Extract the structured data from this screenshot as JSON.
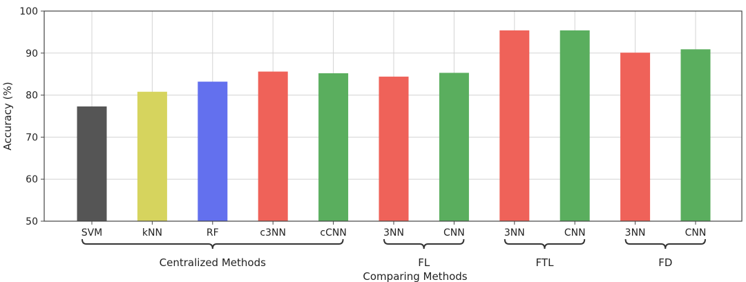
{
  "chart_data": {
    "type": "bar",
    "categories": [
      "SVM",
      "kNN",
      "RF",
      "c3NN",
      "cCNN",
      "3NN",
      "CNN",
      "3NN",
      "CNN",
      "3NN",
      "CNN"
    ],
    "values": [
      77.3,
      80.8,
      83.2,
      85.6,
      85.2,
      84.4,
      85.3,
      95.4,
      95.4,
      90.1,
      90.9
    ],
    "bar_colors": [
      "#555555",
      "#d6d45e",
      "#6370ee",
      "#ef6259",
      "#5aae5e",
      "#ef6259",
      "#5aae5e",
      "#ef6259",
      "#5aae5e",
      "#ef6259",
      "#5aae5e"
    ],
    "groups": [
      {
        "label": "Centralized Methods",
        "start": 0,
        "end": 4
      },
      {
        "label": "FL",
        "start": 5,
        "end": 6
      },
      {
        "label": "FTL",
        "start": 7,
        "end": 8
      },
      {
        "label": "FD",
        "start": 9,
        "end": 10
      }
    ],
    "xlabel": "Comparing Methods",
    "ylabel": "Accuracy (%)",
    "ylim": [
      50,
      100
    ],
    "yticks": [
      50,
      60,
      70,
      80,
      90,
      100
    ],
    "grid": true
  }
}
